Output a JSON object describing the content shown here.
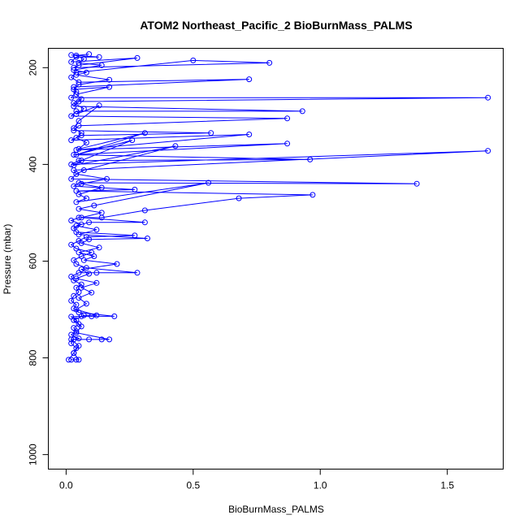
{
  "chart_data": {
    "type": "line",
    "title": "ATOM2 Northeast_Pacific_2 BioBurnMass_PALMS",
    "xlabel": "BioBurnMass_PALMS",
    "ylabel": "Pressure (mbar)",
    "xlim": [
      -0.07,
      1.72
    ],
    "ylim": [
      1030,
      160
    ],
    "y_reversed": true,
    "x_ticks": [
      0.0,
      0.5,
      1.0,
      1.5
    ],
    "x_tick_labels": [
      "0.0",
      "0.5",
      "1.0",
      "1.5"
    ],
    "y_ticks": [
      200,
      400,
      600,
      800,
      1000
    ],
    "y_tick_labels": [
      "200",
      "400",
      "600",
      "800",
      "1000"
    ],
    "grid": false,
    "series": [
      {
        "color": "#0000ff",
        "marker": "open-circle",
        "points": [
          [
            0.02,
            804
          ],
          [
            0.04,
            804
          ],
          [
            0.05,
            804
          ],
          [
            0.03,
            790
          ],
          [
            0.04,
            780
          ],
          [
            0.02,
            770
          ],
          [
            0.03,
            762
          ],
          [
            0.05,
            760
          ],
          [
            0.02,
            752
          ],
          [
            0.04,
            745
          ],
          [
            0.03,
            738
          ],
          [
            0.05,
            730
          ],
          [
            0.04,
            722
          ],
          [
            0.02,
            715
          ],
          [
            0.06,
            714
          ],
          [
            0.1,
            714
          ],
          [
            0.19,
            714
          ],
          [
            0.05,
            706
          ],
          [
            0.03,
            698
          ],
          [
            0.04,
            690
          ],
          [
            0.02,
            682
          ],
          [
            0.03,
            672
          ],
          [
            0.05,
            664
          ],
          [
            0.04,
            655
          ],
          [
            0.06,
            648
          ],
          [
            0.03,
            640
          ],
          [
            0.02,
            632
          ],
          [
            0.05,
            624
          ],
          [
            0.12,
            624
          ],
          [
            0.28,
            624
          ],
          [
            0.08,
            614
          ],
          [
            0.04,
            606
          ],
          [
            0.03,
            598
          ],
          [
            0.06,
            590
          ],
          [
            0.1,
            582
          ],
          [
            0.04,
            574
          ],
          [
            0.02,
            566
          ],
          [
            0.05,
            558
          ],
          [
            0.08,
            550
          ],
          [
            0.27,
            547
          ],
          [
            0.04,
            540
          ],
          [
            0.03,
            532
          ],
          [
            0.06,
            524
          ],
          [
            0.02,
            516
          ],
          [
            0.05,
            510
          ],
          [
            0.14,
            510
          ],
          [
            0.31,
            495
          ],
          [
            0.68,
            470
          ],
          [
            0.97,
            463
          ],
          [
            0.04,
            455
          ],
          [
            0.27,
            452
          ],
          [
            0.03,
            445
          ],
          [
            0.05,
            438
          ],
          [
            1.38,
            440
          ],
          [
            0.02,
            430
          ],
          [
            0.04,
            420
          ],
          [
            0.03,
            412
          ],
          [
            1.66,
            372
          ],
          [
            0.02,
            400
          ],
          [
            0.05,
            392
          ],
          [
            0.96,
            390
          ],
          [
            0.03,
            380
          ],
          [
            0.87,
            357
          ],
          [
            0.04,
            370
          ],
          [
            0.72,
            338
          ],
          [
            0.02,
            350
          ],
          [
            0.06,
            340
          ],
          [
            0.57,
            335
          ],
          [
            0.03,
            330
          ],
          [
            0.05,
            320
          ],
          [
            0.87,
            305
          ],
          [
            0.02,
            300
          ],
          [
            0.04,
            290
          ],
          [
            0.93,
            290
          ],
          [
            0.03,
            280
          ],
          [
            0.05,
            270
          ],
          [
            1.66,
            262
          ],
          [
            0.02,
            262
          ],
          [
            0.04,
            250
          ],
          [
            0.03,
            240
          ],
          [
            0.72,
            224
          ],
          [
            0.05,
            230
          ],
          [
            0.02,
            220
          ],
          [
            0.04,
            210
          ],
          [
            0.5,
            185
          ],
          [
            0.8,
            190
          ],
          [
            0.03,
            200
          ],
          [
            0.05,
            195
          ],
          [
            0.28,
            180
          ],
          [
            0.02,
            188
          ],
          [
            0.04,
            178
          ],
          [
            0.13,
            178
          ],
          [
            0.02,
            174
          ]
        ]
      },
      {
        "color": "#0000ff",
        "marker": "open-circle",
        "points": [
          [
            0.01,
            804
          ],
          [
            0.03,
            790
          ],
          [
            0.05,
            775
          ],
          [
            0.02,
            762
          ],
          [
            0.09,
            762
          ],
          [
            0.14,
            762
          ],
          [
            0.17,
            762
          ],
          [
            0.04,
            748
          ],
          [
            0.06,
            735
          ],
          [
            0.03,
            722
          ],
          [
            0.07,
            712
          ],
          [
            0.12,
            712
          ],
          [
            0.04,
            700
          ],
          [
            0.08,
            688
          ],
          [
            0.05,
            676
          ],
          [
            0.1,
            665
          ],
          [
            0.06,
            655
          ],
          [
            0.12,
            645
          ],
          [
            0.04,
            636
          ],
          [
            0.09,
            626
          ],
          [
            0.06,
            617
          ],
          [
            0.2,
            606
          ],
          [
            0.07,
            598
          ],
          [
            0.11,
            590
          ],
          [
            0.05,
            582
          ],
          [
            0.13,
            572
          ],
          [
            0.06,
            563
          ],
          [
            0.09,
            555
          ],
          [
            0.32,
            553
          ],
          [
            0.05,
            545
          ],
          [
            0.12,
            535
          ],
          [
            0.04,
            527
          ],
          [
            0.09,
            520
          ],
          [
            0.31,
            520
          ],
          [
            0.06,
            510
          ],
          [
            0.14,
            500
          ],
          [
            0.05,
            492
          ],
          [
            0.11,
            485
          ],
          [
            0.56,
            438
          ],
          [
            0.04,
            478
          ],
          [
            0.08,
            470
          ],
          [
            0.05,
            462
          ],
          [
            0.14,
            448
          ],
          [
            0.06,
            440
          ],
          [
            0.16,
            430
          ],
          [
            0.04,
            420
          ],
          [
            0.07,
            412
          ],
          [
            0.43,
            362
          ],
          [
            0.03,
            402
          ],
          [
            0.06,
            392
          ],
          [
            0.26,
            350
          ],
          [
            0.04,
            380
          ],
          [
            0.31,
            335
          ],
          [
            0.05,
            368
          ],
          [
            0.08,
            355
          ],
          [
            0.04,
            345
          ],
          [
            0.06,
            335
          ],
          [
            0.03,
            325
          ],
          [
            0.05,
            310
          ],
          [
            0.13,
            278
          ],
          [
            0.04,
            296
          ],
          [
            0.07,
            285
          ],
          [
            0.03,
            273
          ],
          [
            0.06,
            265
          ],
          [
            0.04,
            255
          ],
          [
            0.17,
            240
          ],
          [
            0.03,
            245
          ],
          [
            0.05,
            235
          ],
          [
            0.17,
            225
          ],
          [
            0.04,
            215
          ],
          [
            0.08,
            210
          ],
          [
            0.03,
            205
          ],
          [
            0.14,
            195
          ],
          [
            0.05,
            190
          ],
          [
            0.07,
            182
          ],
          [
            0.04,
            175
          ],
          [
            0.09,
            172
          ]
        ]
      }
    ]
  }
}
